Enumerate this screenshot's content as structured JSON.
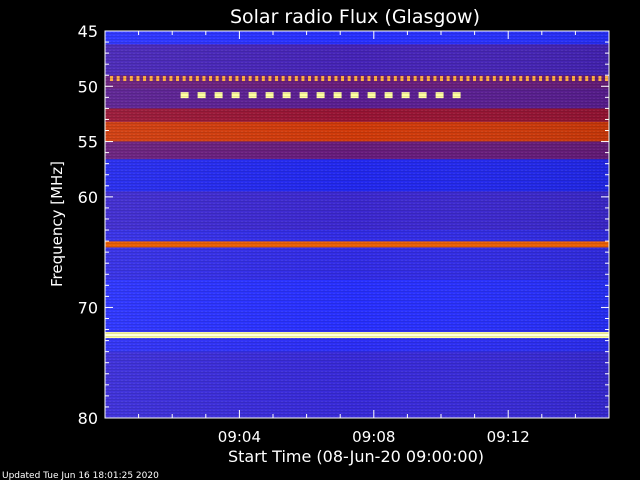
{
  "chart_data": {
    "type": "heatmap",
    "title": "Solar radio Flux (Glasgow)",
    "ylabel": "Frequency [MHz]",
    "xlabel": "Start Time (08-Jun-20 09:00:00)",
    "ylim": [
      45,
      80
    ],
    "y_inverted": true,
    "y_ticks": [
      45,
      50,
      55,
      60,
      70,
      80
    ],
    "x_range_minutes": [
      0,
      15
    ],
    "x_ticks": [
      {
        "minute": 4,
        "label": "09:04"
      },
      {
        "minute": 8,
        "label": "09:08"
      },
      {
        "minute": 12,
        "label": "09:12"
      }
    ],
    "colormap": [
      "#1010c0",
      "#2830ff",
      "#5020a0",
      "#b01010",
      "#ff7a00",
      "#ffffa0"
    ],
    "bands": [
      {
        "from_mhz": 45.0,
        "to_mhz": 46.2,
        "level": 0.2
      },
      {
        "from_mhz": 46.2,
        "to_mhz": 49.0,
        "level": 0.35
      },
      {
        "from_mhz": 49.0,
        "to_mhz": 50.2,
        "level": 0.45
      },
      {
        "from_mhz": 50.2,
        "to_mhz": 52.0,
        "level": 0.42
      },
      {
        "from_mhz": 52.0,
        "to_mhz": 53.2,
        "level": 0.55
      },
      {
        "from_mhz": 53.2,
        "to_mhz": 55.0,
        "level": 0.68
      },
      {
        "from_mhz": 55.0,
        "to_mhz": 56.6,
        "level": 0.45
      },
      {
        "from_mhz": 56.6,
        "to_mhz": 59.5,
        "level": 0.15
      },
      {
        "from_mhz": 59.5,
        "to_mhz": 63.0,
        "level": 0.3
      },
      {
        "from_mhz": 63.0,
        "to_mhz": 67.5,
        "level": 0.25
      },
      {
        "from_mhz": 67.5,
        "to_mhz": 72.0,
        "level": 0.2
      },
      {
        "from_mhz": 72.0,
        "to_mhz": 74.0,
        "level": 0.22
      },
      {
        "from_mhz": 74.0,
        "to_mhz": 80.0,
        "level": 0.28
      }
    ],
    "lines": [
      {
        "mhz": 49.3,
        "level": 0.88,
        "dashed": true,
        "t_from": 0.15,
        "t_to": 15.0
      },
      {
        "mhz": 50.8,
        "level": 1.0,
        "dashed": true,
        "t_from": 2.25,
        "t_to": 10.6
      },
      {
        "mhz": 64.3,
        "level": 0.75,
        "dashed": false,
        "t_from": 0.0,
        "t_to": 15.0
      },
      {
        "mhz": 72.5,
        "level": 1.0,
        "dashed": false,
        "t_from": 0.0,
        "t_to": 15.0
      }
    ],
    "footer": "Updated Tue Jun 16 18:01:25 2020"
  }
}
